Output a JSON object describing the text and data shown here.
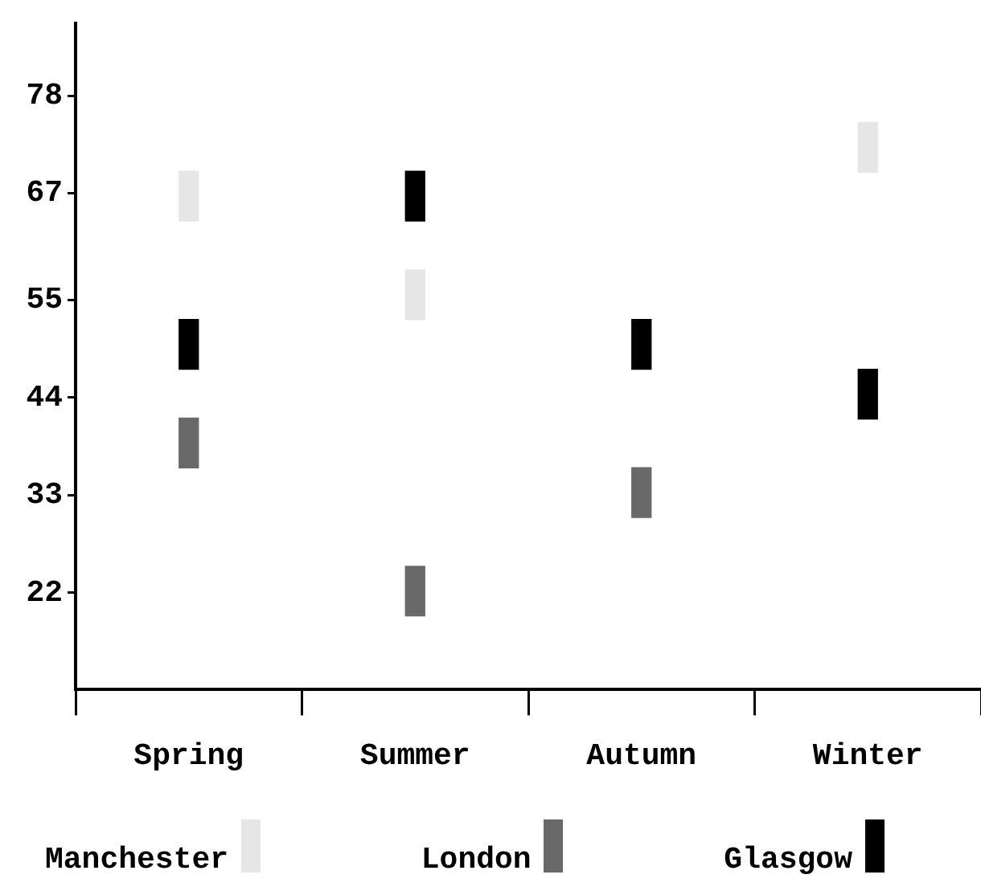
{
  "chart_data": {
    "type": "bar",
    "categories": [
      "Spring",
      "Summer",
      "Autumn",
      "Winter"
    ],
    "series": [
      {
        "name": "Manchester",
        "color": "#e6e6e6",
        "base": [
          63.9,
          52.8,
          null,
          69.4
        ],
        "values": [
          5.6,
          5.6,
          null,
          5.6
        ]
      },
      {
        "name": "London",
        "color": "#696969",
        "base": [
          36.1,
          19.4,
          30.5,
          null
        ],
        "values": [
          5.6,
          5.6,
          5.6,
          null
        ]
      },
      {
        "name": "Glasgow",
        "color": "#000000",
        "base": [
          47.2,
          63.9,
          47.2,
          41.6
        ],
        "values": [
          5.6,
          5.6,
          5.6,
          5.6
        ]
      }
    ],
    "ylim": [
      11.1,
      86.2
    ],
    "yticks": [
      22,
      33,
      44,
      55,
      67,
      78
    ],
    "legend": "bottom"
  }
}
